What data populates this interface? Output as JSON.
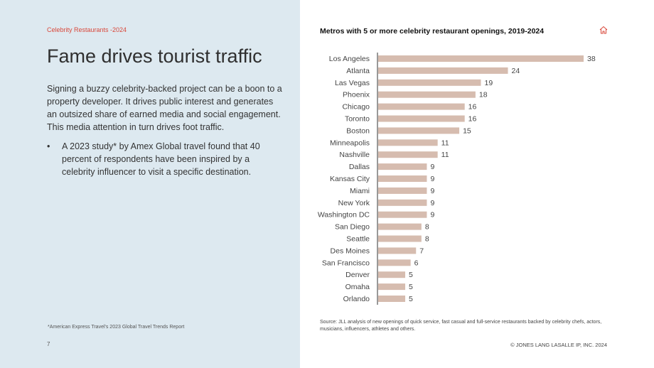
{
  "left": {
    "eyebrow": "Celebrity Restaurants -2024",
    "title": "Fame drives tourist traffic",
    "lede": "Signing a buzzy celebrity-backed project can be a boon to a property developer. It drives public interest and generates an outsized share of earned media and social engagement. This media attention in turn drives foot traffic.",
    "bullet_symbol": "•",
    "bullet": "A 2023 study* by Amex Global travel found that 40 percent of respondents have been inspired by a celebrity influencer to visit a specific destination.",
    "footnote": "*American Express Travel's 2023 Global Travel Trends Report",
    "page_number": "7"
  },
  "right": {
    "source": "Source: JLL analysis of new openings of quick service, fast casual and full-service restaurants backed by celebrity chefs, actors, musicians, influencers, athletes and others.",
    "copyright": "© JONES LANG LASALLE IP, INC. 2024",
    "icon": "home-icon"
  },
  "colors": {
    "bar": "#d6bcaf",
    "accent": "#d9483b",
    "panel": "#dde9f0"
  },
  "chart_data": {
    "type": "bar",
    "orientation": "horizontal",
    "title": "Metros with 5 or more celebrity restaurant openings, 2019-2024",
    "xlabel": "",
    "ylabel": "",
    "xlim": [
      0,
      38
    ],
    "grid": false,
    "legend": "none",
    "categories": [
      "Los Angeles",
      "Atlanta",
      "Las Vegas",
      "Phoenix",
      "Chicago",
      "Toronto",
      "Boston",
      "Minneapolis",
      "Nashville",
      "Dallas",
      "Kansas City",
      "Miami",
      "New York",
      "Washington DC",
      "San Diego",
      "Seattle",
      "Des Moines",
      "San Francisco",
      "Denver",
      "Omaha",
      "Orlando"
    ],
    "values": [
      38,
      24,
      19,
      18,
      16,
      16,
      15,
      11,
      11,
      9,
      9,
      9,
      9,
      9,
      8,
      8,
      7,
      6,
      5,
      5,
      5
    ]
  }
}
